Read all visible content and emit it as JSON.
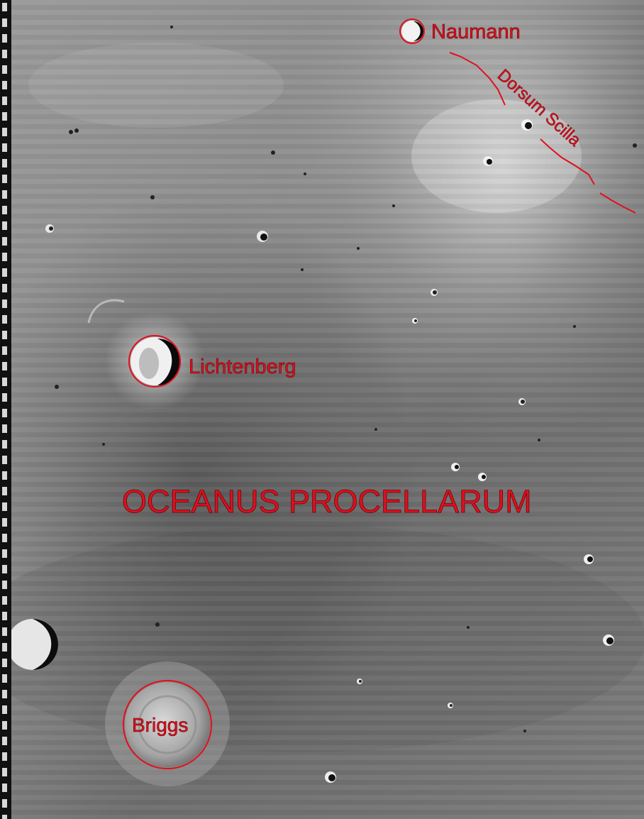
{
  "labels": {
    "naumann": "Naumann",
    "dorsum_scilla": "Dorsum Scilla",
    "lichtenberg": "Lichtenberg",
    "oceanus_procellarum": "OCEANUS PROCELLARUM",
    "briggs": "Briggs"
  },
  "colors": {
    "annotation": "#e0101e",
    "annotation_stroke": "#6a0008",
    "terrain_mid": "#8a8a8a",
    "terrain_dark": "#5a5a5a",
    "terrain_light": "#c8c8c8"
  },
  "image_type": "lunar orbiter photograph, annotated"
}
